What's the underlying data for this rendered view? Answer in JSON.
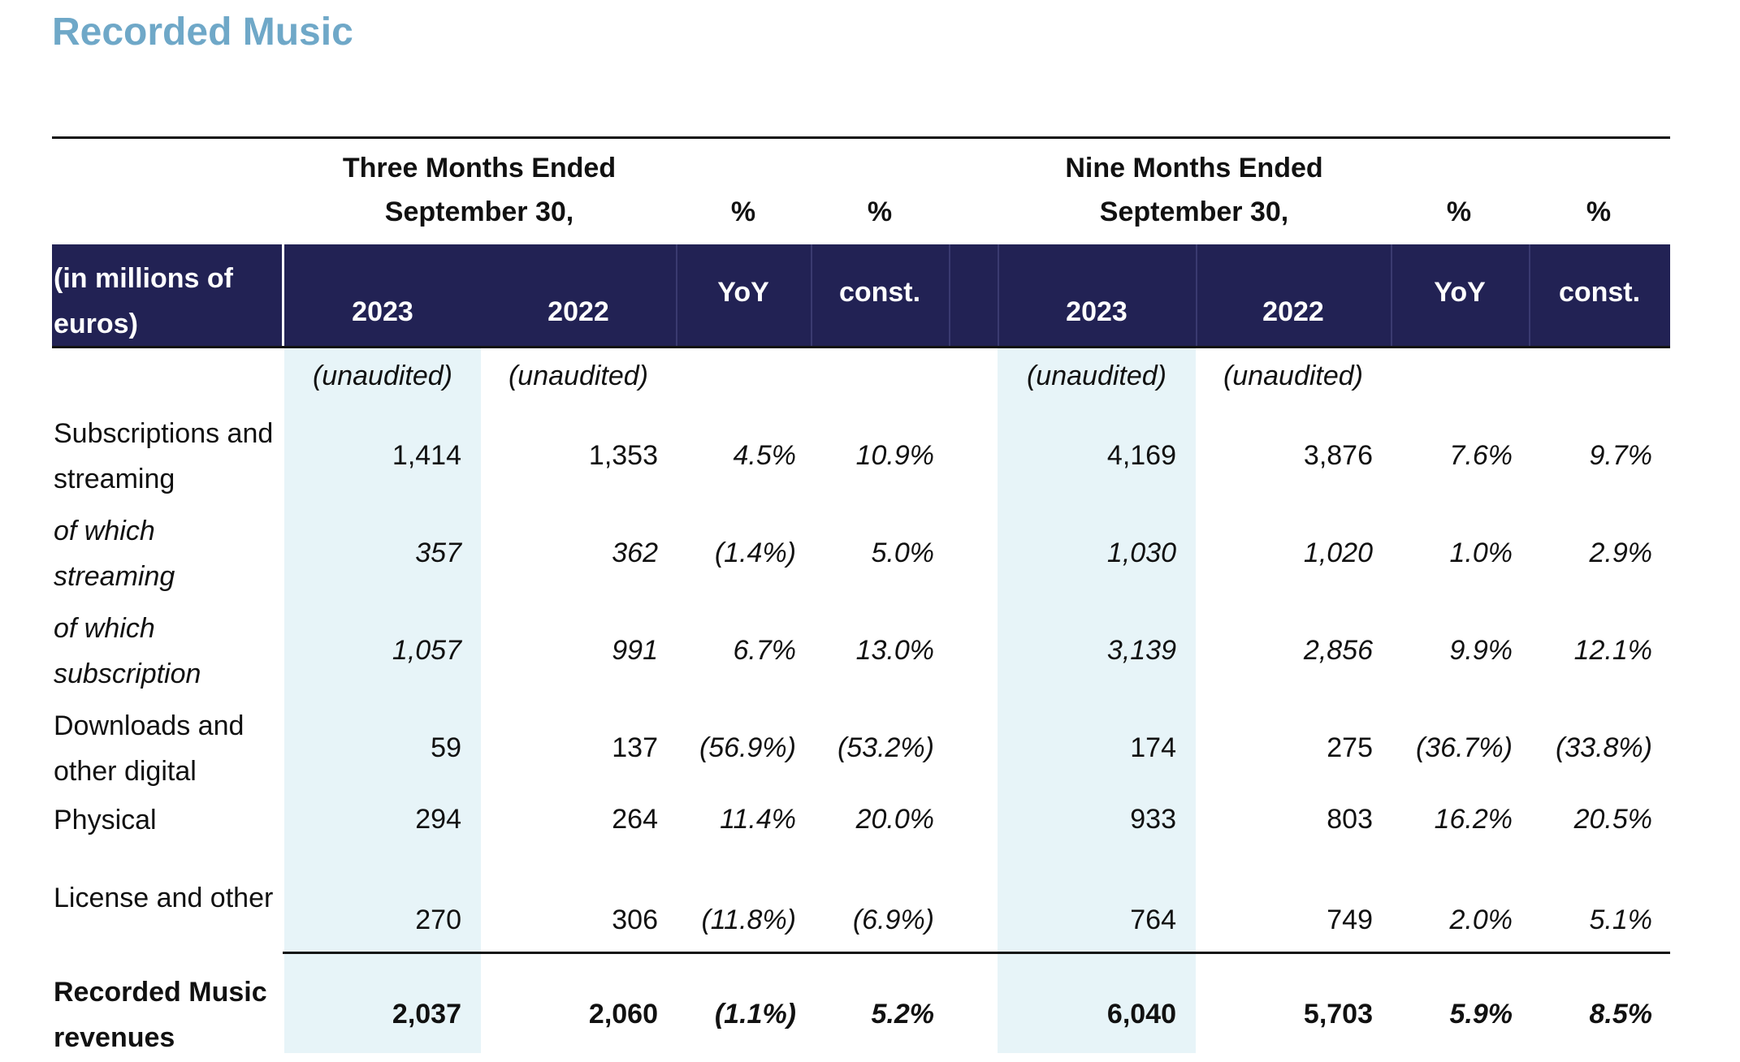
{
  "title": "Recorded Music",
  "header": {
    "three_months_line1": "Three Months Ended",
    "three_months_line2": "September 30,",
    "nine_months_line1": "Nine Months Ended",
    "nine_months_line2": "September 30,",
    "pct": "%",
    "units_label": "(in millions of euros)",
    "year_2023": "2023",
    "year_2022": "2022",
    "yoy": "YoY",
    "const": "const."
  },
  "unaudited": "(unaudited)",
  "rows": [
    {
      "label": "Subscriptions and streaming",
      "style": "normal",
      "values": [
        "1,414",
        "1,353",
        "4.5%",
        "10.9%",
        "4,169",
        "3,876",
        "7.6%",
        "9.7%"
      ]
    },
    {
      "label": "of which streaming",
      "style": "italic",
      "values": [
        "357",
        "362",
        "(1.4%)",
        "5.0%",
        "1,030",
        "1,020",
        "1.0%",
        "2.9%"
      ]
    },
    {
      "label": "of which subscription",
      "style": "italic",
      "values": [
        "1,057",
        "991",
        "6.7%",
        "13.0%",
        "3,139",
        "2,856",
        "9.9%",
        "12.1%"
      ]
    },
    {
      "label": "Downloads and other digital",
      "style": "normal",
      "values": [
        "59",
        "137",
        "(56.9%)",
        "(53.2%)",
        "174",
        "275",
        "(36.7%)",
        "(33.8%)"
      ]
    },
    {
      "label": "Physical",
      "style": "normal",
      "values": [
        "294",
        "264",
        "11.4%",
        "20.0%",
        "933",
        "803",
        "16.2%",
        "20.5%"
      ]
    },
    {
      "label": "License and other",
      "style": "normal",
      "values": [
        "270",
        "306",
        "(11.8%)",
        "(6.9%)",
        "764",
        "749",
        "2.0%",
        "5.1%"
      ]
    },
    {
      "label": "Recorded Music revenues",
      "style": "bold",
      "values": [
        "2,037",
        "2,060",
        "(1.1%)",
        "5.2%",
        "6,040",
        "5,703",
        "5.9%",
        "8.5%"
      ]
    }
  ]
}
